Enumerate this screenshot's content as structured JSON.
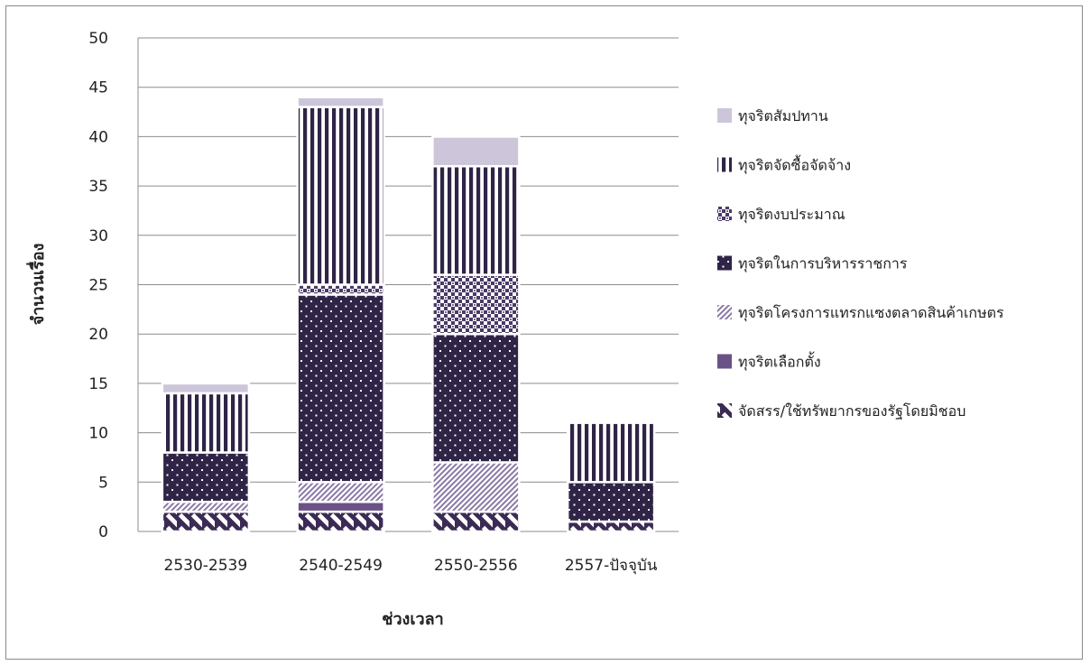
{
  "chart_data": {
    "type": "bar",
    "stacked": true,
    "title": "",
    "xlabel": "ช่วงเวลา",
    "ylabel": "จำนวนเรื่อง",
    "ylim": [
      0,
      50
    ],
    "yticks": [
      0,
      5,
      10,
      15,
      20,
      25,
      30,
      35,
      40,
      45,
      50
    ],
    "grid": true,
    "legend_position": "right",
    "categories": [
      "2530-2539",
      "2540-2549",
      "2550-2556",
      "2557-ปัจจุบัน"
    ],
    "series": [
      {
        "name": "จัดสรร/ใช้ทรัพยากรของรัฐโดยมิชอบ",
        "values": [
          2,
          2,
          2,
          1
        ],
        "color": "#3b2b54",
        "pattern": "diag-back"
      },
      {
        "name": "ทุจริตเลือกตั้ง",
        "values": [
          0,
          1,
          0,
          0
        ],
        "color": "#6a5287",
        "pattern": "solid"
      },
      {
        "name": "ทุจริตโครงการแทรกแซงตลาดสินค้าเกษตร",
        "values": [
          1,
          2,
          5,
          0
        ],
        "color": "#8a78a6",
        "pattern": "diag-fwd"
      },
      {
        "name": "ทุจริตในการบริหารราชการ",
        "values": [
          5,
          19,
          13,
          4
        ],
        "color": "#2f2446",
        "pattern": "dots"
      },
      {
        "name": "ทุจริตงบประมาณ",
        "values": [
          0,
          1,
          6,
          0
        ],
        "color": "#4a3a66",
        "pattern": "checker"
      },
      {
        "name": "ทุจริตจัดซื้อจัดจ้าง",
        "values": [
          6,
          18,
          11,
          6
        ],
        "color": "#2f2446",
        "pattern": "vstripes"
      },
      {
        "name": "ทุจริตสัมปทาน",
        "values": [
          1,
          1,
          3,
          0
        ],
        "color": "#cdc6da",
        "pattern": "solid"
      }
    ]
  }
}
